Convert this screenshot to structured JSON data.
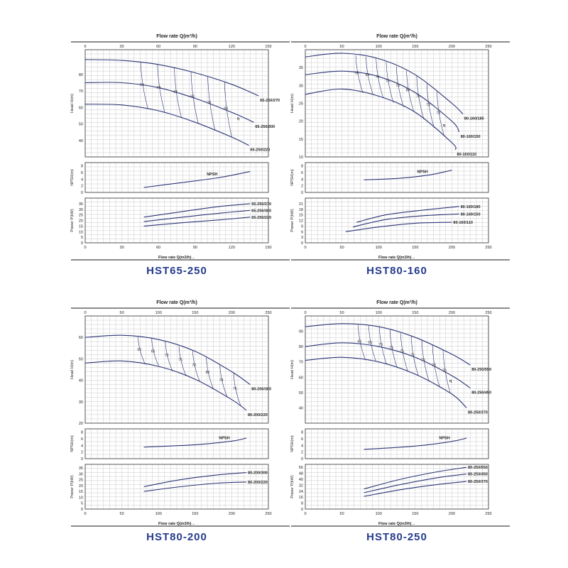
{
  "colors": {
    "curve": "#2b3575",
    "grid": "#bdbdbd",
    "frame": "#444444",
    "title": "#243b8c"
  },
  "chart_data": [
    {
      "type": "line",
      "title": "HST65-250",
      "xlabel_top": "Flow rate Q(m³/h)",
      "xlabel_bottom": "Flow rate Q(m3/h)→",
      "xlim": [
        0,
        150
      ],
      "xticks": [
        0,
        30,
        60,
        90,
        120,
        150
      ],
      "panels": {
        "head": {
          "ylabel": "Head H(m)",
          "ylim": [
            30,
            95
          ],
          "yticks": [
            40,
            50,
            60,
            70,
            80
          ],
          "series": [
            {
              "name": "65-250/270",
              "x": [
                0,
                30,
                60,
                90,
                120,
                142
              ],
              "y": [
                89,
                88.5,
                86,
                81,
                74,
                67
              ]
            },
            {
              "name": "65-250/300",
              "x": [
                0,
                30,
                60,
                90,
                120,
                138
              ],
              "y": [
                75,
                75,
                72,
                65.5,
                57,
                51
              ]
            },
            {
              "name": "65-250/220",
              "x": [
                0,
                30,
                60,
                90,
                120,
                134
              ],
              "y": [
                62,
                61.5,
                58,
                51,
                42,
                37
              ]
            }
          ],
          "efficiency_labels": [
            "50",
            "60",
            "65",
            "68",
            "70",
            "68",
            "η"
          ]
        },
        "npsh": {
          "ylabel": "NPSH(m)",
          "ylim": [
            0,
            9
          ],
          "yticks": [
            0,
            2,
            4,
            6,
            8
          ],
          "series": [
            {
              "name": "NPSH",
              "x": [
                48,
                80,
                110,
                135
              ],
              "y": [
                1.5,
                3,
                4.5,
                6.3
              ]
            }
          ]
        },
        "power": {
          "ylabel": "Power P(kW)",
          "ylim": [
            0,
            40
          ],
          "yticks": [
            0,
            5,
            10,
            15,
            20,
            25,
            30,
            35
          ],
          "series": [
            {
              "name": "65-250/270",
              "x": [
                48,
                80,
                110,
                135
              ],
              "y": [
                23,
                28,
                32.5,
                35
              ]
            },
            {
              "name": "65-250/300",
              "x": [
                48,
                80,
                110,
                135
              ],
              "y": [
                19,
                23,
                26.5,
                29
              ]
            },
            {
              "name": "65-250/220",
              "x": [
                48,
                80,
                110,
                135
              ],
              "y": [
                15,
                18,
                20.5,
                23
              ]
            }
          ]
        }
      }
    },
    {
      "type": "line",
      "title": "HST80-160",
      "xlabel_top": "Flow rate Q(m³/h)",
      "xlabel_bottom": "Flow rate Q(m3/h)→",
      "xlim": [
        0,
        250
      ],
      "xticks": [
        0,
        50,
        100,
        150,
        200,
        250
      ],
      "panels": {
        "head": {
          "ylabel": "Head H(m)",
          "ylim": [
            10,
            40
          ],
          "yticks": [
            10,
            15,
            20,
            25,
            30,
            35
          ],
          "series": [
            {
              "name": "80-160/185",
              "x": [
                0,
                50,
                100,
                150,
                200,
                215
              ],
              "y": [
                38,
                39,
                37.5,
                33,
                25,
                22
              ]
            },
            {
              "name": "80-160/150",
              "x": [
                0,
                50,
                100,
                150,
                200,
                210
              ],
              "y": [
                33,
                34,
                32.5,
                28,
                20,
                17
              ]
            },
            {
              "name": "80-160/110",
              "x": [
                0,
                50,
                100,
                150,
                200,
                205
              ],
              "y": [
                27.5,
                29,
                27,
                22.5,
                14,
                12
              ]
            }
          ],
          "efficiency_labels": [
            "60",
            "65",
            "70",
            "75",
            "78",
            "80",
            "76",
            "73",
            "70",
            "η"
          ]
        },
        "npsh": {
          "ylabel": "NPSH(m)",
          "ylim": [
            0,
            9
          ],
          "yticks": [
            0,
            2,
            4,
            6,
            8
          ],
          "series": [
            {
              "name": "NPSH",
              "x": [
                80,
                130,
                170,
                200
              ],
              "y": [
                3.8,
                4.3,
                5.3,
                6.7
              ]
            }
          ]
        },
        "power": {
          "ylabel": "Power P(kW)",
          "ylim": [
            0,
            24
          ],
          "yticks": [
            0,
            3,
            6,
            9,
            12,
            15,
            18,
            21
          ],
          "series": [
            {
              "name": "80-160/185",
              "x": [
                70,
                110,
                160,
                210
              ],
              "y": [
                11,
                15,
                17.5,
                19.5
              ]
            },
            {
              "name": "80-160/150",
              "x": [
                65,
                110,
                160,
                210
              ],
              "y": [
                8.5,
                12.5,
                14.5,
                15.5
              ]
            },
            {
              "name": "80-160/110",
              "x": [
                55,
                100,
                150,
                200
              ],
              "y": [
                6,
                8.5,
                10.5,
                11
              ]
            }
          ]
        }
      }
    },
    {
      "type": "line",
      "title": "HST80-200",
      "xlabel_top": "Flow rate Q(m³/h)",
      "xlabel_bottom": "Flow rate Q(m3/h)→",
      "xlim": [
        0,
        250
      ],
      "xticks": [
        0,
        50,
        100,
        150,
        200,
        250
      ],
      "panels": {
        "head": {
          "ylabel": "Head H(m)",
          "ylim": [
            20,
            70
          ],
          "yticks": [
            20,
            30,
            40,
            50,
            60
          ],
          "series": [
            {
              "name": "80-200/300",
              "x": [
                0,
                50,
                100,
                150,
                200,
                225
              ],
              "y": [
                60,
                61,
                59,
                53.5,
                44,
                38
              ]
            },
            {
              "name": "80-200/220",
              "x": [
                0,
                50,
                100,
                150,
                200,
                220
              ],
              "y": [
                48,
                49,
                46.5,
                40.5,
                31,
                26
              ]
            }
          ],
          "efficiency_labels": [
            "60",
            "65",
            "70",
            "75",
            "78",
            "80",
            "78",
            "75"
          ]
        },
        "npsh": {
          "ylabel": "NPSH(m)",
          "ylim": [
            0,
            9
          ],
          "yticks": [
            0,
            2,
            4,
            6,
            8
          ],
          "series": [
            {
              "name": "NPSH",
              "x": [
                80,
                150,
                200,
                220
              ],
              "y": [
                3.5,
                4.2,
                5.3,
                6.2
              ]
            }
          ]
        },
        "power": {
          "ylabel": "Power P(kW)",
          "ylim": [
            0,
            38
          ],
          "yticks": [
            0,
            5,
            10,
            15,
            20,
            25,
            30,
            35
          ],
          "series": [
            {
              "name": "80-200/300",
              "x": [
                80,
                130,
                180,
                220
              ],
              "y": [
                19,
                25,
                29,
                31
              ]
            },
            {
              "name": "80-200/220",
              "x": [
                80,
                130,
                180,
                220
              ],
              "y": [
                15,
                19,
                22,
                23
              ]
            }
          ]
        }
      }
    },
    {
      "type": "line",
      "title": "HST80-250",
      "xlabel_top": "Flow rate Q(m³/h)",
      "xlabel_bottom": "Flow rate Q(m3/h)→",
      "xlim": [
        0,
        250
      ],
      "xticks": [
        0,
        50,
        100,
        150,
        200,
        250
      ],
      "panels": {
        "head": {
          "ylabel": "Head H(m)",
          "ylim": [
            30,
            100
          ],
          "yticks": [
            40,
            50,
            60,
            70,
            80,
            90
          ],
          "series": [
            {
              "name": "80-250/550",
              "x": [
                0,
                50,
                100,
                150,
                200,
                225
              ],
              "y": [
                93,
                95,
                93,
                86,
                75,
                68
              ]
            },
            {
              "name": "80-250/450",
              "x": [
                0,
                50,
                100,
                150,
                200,
                225
              ],
              "y": [
                80,
                82.5,
                80,
                73,
                61,
                53
              ]
            },
            {
              "name": "80-250/370",
              "x": [
                0,
                50,
                100,
                150,
                200,
                220
              ],
              "y": [
                71,
                73,
                70,
                62,
                49,
                40
              ]
            }
          ],
          "efficiency_labels": [
            "60",
            "65",
            "70",
            "73",
            "75",
            "76",
            "75",
            "73",
            "70",
            "η"
          ]
        },
        "npsh": {
          "ylabel": "NPSH(m)",
          "ylim": [
            0,
            9
          ],
          "yticks": [
            0,
            2,
            4,
            6,
            8
          ],
          "series": [
            {
              "name": "NPSH",
              "x": [
                80,
                150,
                200,
                220
              ],
              "y": [
                2.8,
                3.8,
                5.2,
                6.2
              ]
            }
          ]
        },
        "power": {
          "ylabel": "Power P(kW)",
          "ylim": [
            0,
            60
          ],
          "yticks": [
            0,
            8,
            16,
            24,
            32,
            40,
            48,
            56
          ],
          "series": [
            {
              "name": "80-250/550",
              "x": [
                80,
                130,
                180,
                220
              ],
              "y": [
                27,
                40,
                50,
                56
              ]
            },
            {
              "name": "80-250/450",
              "x": [
                80,
                130,
                180,
                220
              ],
              "y": [
                22,
                33,
                42,
                47
              ]
            },
            {
              "name": "80-250/370",
              "x": [
                80,
                130,
                180,
                220
              ],
              "y": [
                17,
                26,
                33,
                37
              ]
            }
          ]
        }
      }
    }
  ]
}
